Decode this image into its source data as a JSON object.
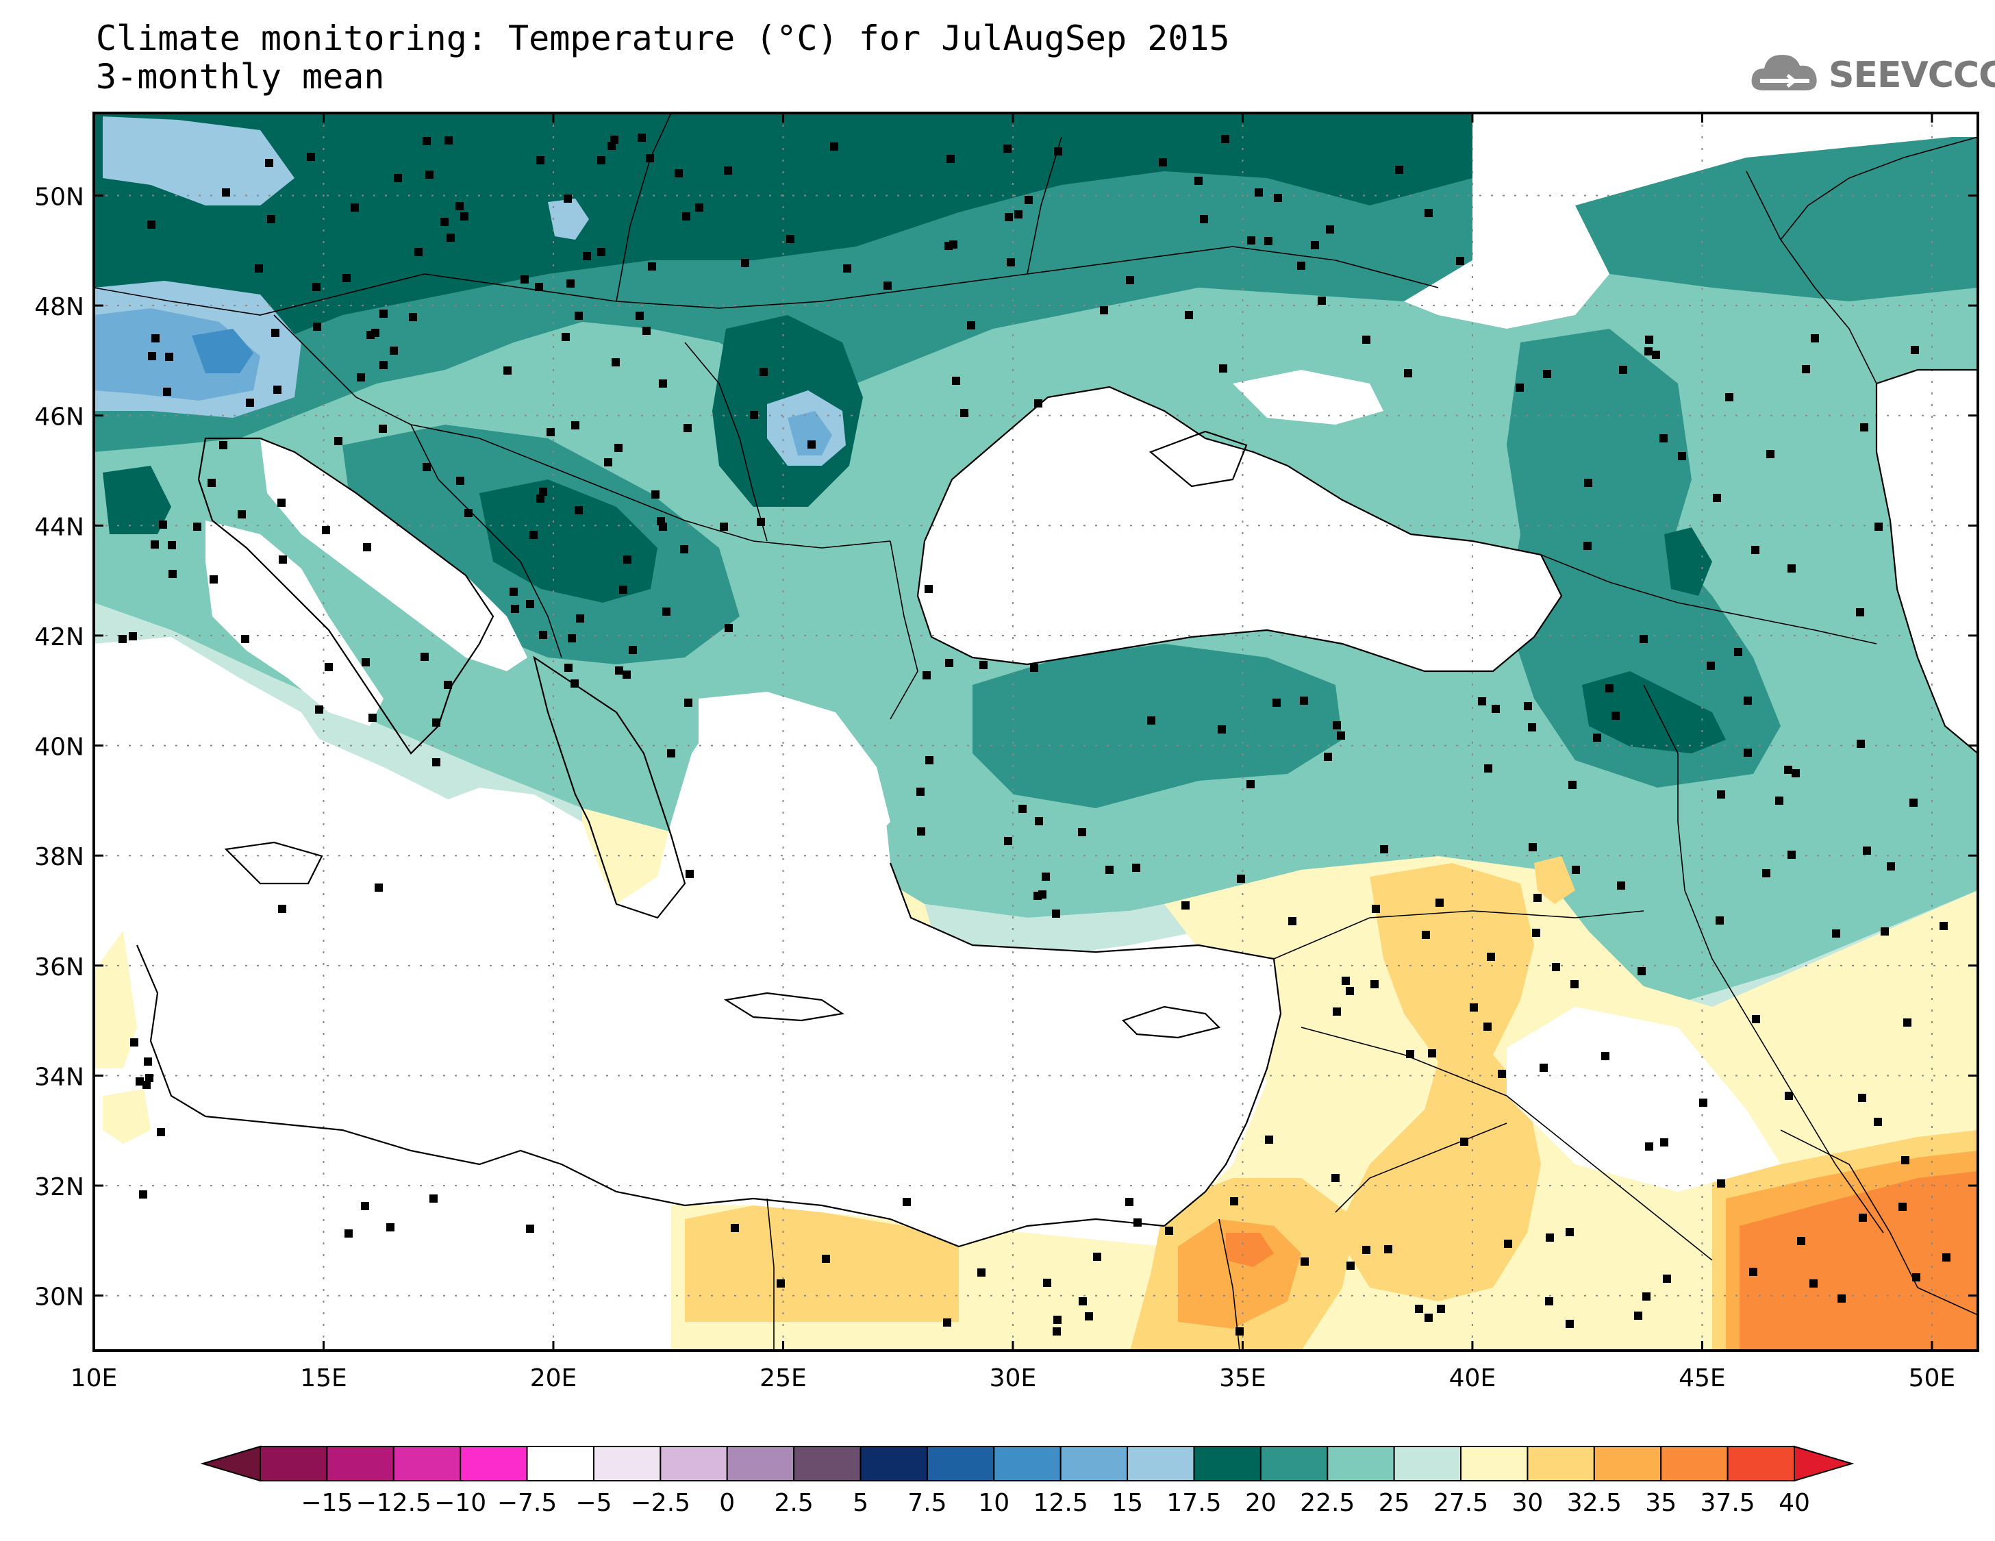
{
  "title": {
    "line1": "Climate monitoring: Temperature (°C) for JulAugSep 2015",
    "line2": "3-monthly mean"
  },
  "logo": {
    "text": "SEEVCCC"
  },
  "map": {
    "lat_labels": [
      "50N",
      "48N",
      "46N",
      "44N",
      "42N",
      "40N",
      "38N",
      "36N",
      "34N",
      "32N",
      "30N"
    ],
    "lon_labels": [
      "10E",
      "15E",
      "20E",
      "25E",
      "30E",
      "35E",
      "40E",
      "45E",
      "50E"
    ],
    "lat_range": [
      29,
      51.5
    ],
    "lon_range": [
      10,
      51
    ]
  },
  "colorbar": {
    "labels": [
      "-15",
      "-12.5",
      "-10",
      "-7.5",
      "-5",
      "-2.5",
      "0",
      "2.5",
      "5",
      "7.5",
      "10",
      "12.5",
      "15",
      "17.5",
      "20",
      "22.5",
      "25",
      "27.5",
      "30",
      "32.5",
      "35",
      "37.5",
      "40"
    ],
    "colors": [
      "#8e1254",
      "#b4197a",
      "#d92aa8",
      "#fb2bcc",
      "#ffffff",
      "#f0e4f3",
      "#d8b8dc",
      "#ab8ab8",
      "#6b4e6d",
      "#0c2d67",
      "#1e61a2",
      "#3f8fc6",
      "#6eaed6",
      "#9cc9e2",
      "#00665a",
      "#2f958a",
      "#7fcbbb",
      "#c6e7de",
      "#fff7c2",
      "#fed778",
      "#fcaf4a",
      "#f98b3a",
      "#f24a2d"
    ],
    "low_arrow_color": "#6d1338",
    "high_arrow_color": "#e21b2c"
  },
  "fill_colors": {
    "t20": "#00665a",
    "t22": "#2f958a",
    "t25": "#7fcbbb",
    "t27": "#c6e7de",
    "t30": "#fff7c2",
    "t32": "#fed778",
    "t35": "#fcaf4a",
    "t37": "#f98b3a",
    "c15": "#9cc9e2",
    "c12": "#6eaed6",
    "c10": "#3f8fc6"
  }
}
